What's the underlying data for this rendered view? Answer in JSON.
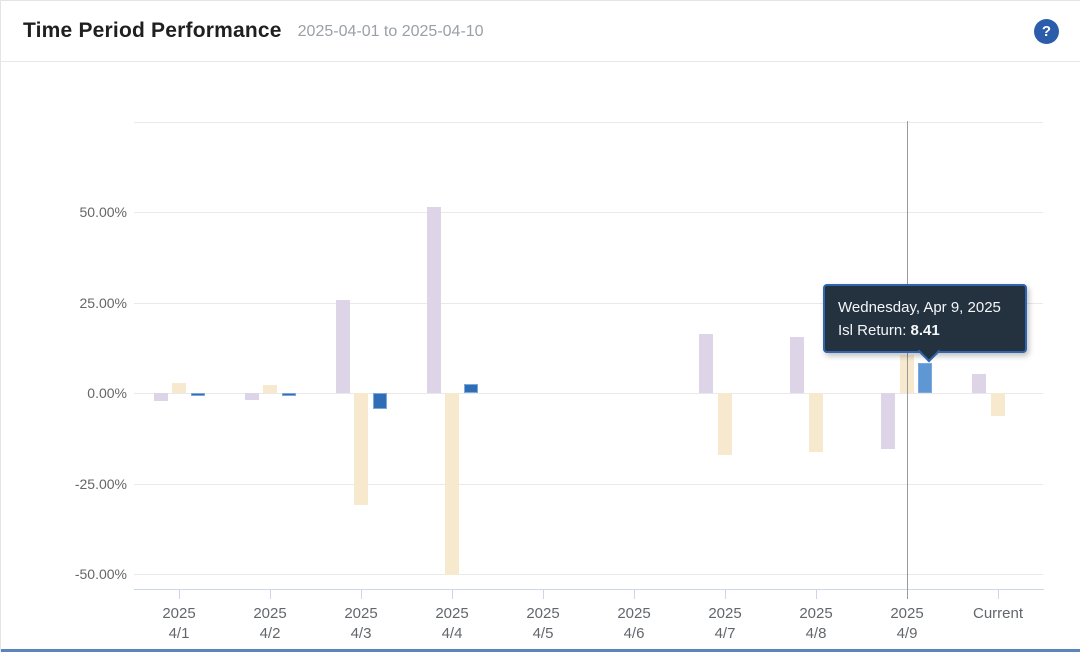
{
  "header": {
    "title": "Time Period Performance",
    "date_range": "2025-04-01 to 2025-04-10",
    "help_glyph": "?"
  },
  "tooltip": {
    "date_line": "Wednesday, Apr 9, 2025",
    "series_label": "Isl Return: ",
    "value": "8.41"
  },
  "colors": {
    "help_button": "#2b5dab",
    "tooltip_bg": "#243240",
    "tooltip_border": "#2f66ad",
    "tooltip_text": "#f4f6f8",
    "gridline": "#e9e9e9",
    "axis": "#ccd6eb",
    "crosshair": "#9a9a9a",
    "bottom_strip": "#5a86bd"
  },
  "chart_data": {
    "type": "bar",
    "title": "",
    "xlabel": "",
    "ylabel": "",
    "legend": "none",
    "grid": "horizontal",
    "ylim": [
      -54,
      75
    ],
    "categories": [
      [
        "2025",
        "4/1"
      ],
      [
        "2025",
        "4/2"
      ],
      [
        "2025",
        "4/3"
      ],
      [
        "2025",
        "4/4"
      ],
      [
        "2025",
        "4/5"
      ],
      [
        "2025",
        "4/6"
      ],
      [
        "2025",
        "4/7"
      ],
      [
        "2025",
        "4/8"
      ],
      [
        "2025",
        "4/9"
      ],
      [
        "Current"
      ]
    ],
    "yaxis": {
      "unit": "%",
      "tick_labels": [
        "50.00%",
        "25.00%",
        "0.00%",
        "-25.00%",
        "-50.00%"
      ],
      "tick_values": [
        50,
        25,
        0,
        -25,
        -50
      ],
      "grid_values": [
        75,
        50,
        25,
        0,
        -25,
        -50
      ]
    },
    "series": [
      {
        "name": "",
        "color": "#ddd4e8",
        "values": [
          -2.3,
          -1.8,
          25.6,
          51.5,
          null,
          null,
          16.3,
          15.5,
          -15.6,
          5.2
        ]
      },
      {
        "name": "",
        "color": "#f7e9ce",
        "values": [
          2.8,
          2.3,
          -30.9,
          -50.3,
          null,
          null,
          -17.0,
          -16.2,
          10.4,
          -6.4
        ]
      },
      {
        "name": "Isl Return",
        "color": "#2f6db6",
        "border_color": "#7ca9dc",
        "hover_color": "#5f97d5",
        "values": [
          -0.9,
          -0.9,
          -4.5,
          2.4,
          null,
          null,
          null,
          null,
          8.41,
          null
        ]
      }
    ],
    "hover": {
      "category_index": 8,
      "series_index": 2,
      "value": 8.41
    }
  }
}
